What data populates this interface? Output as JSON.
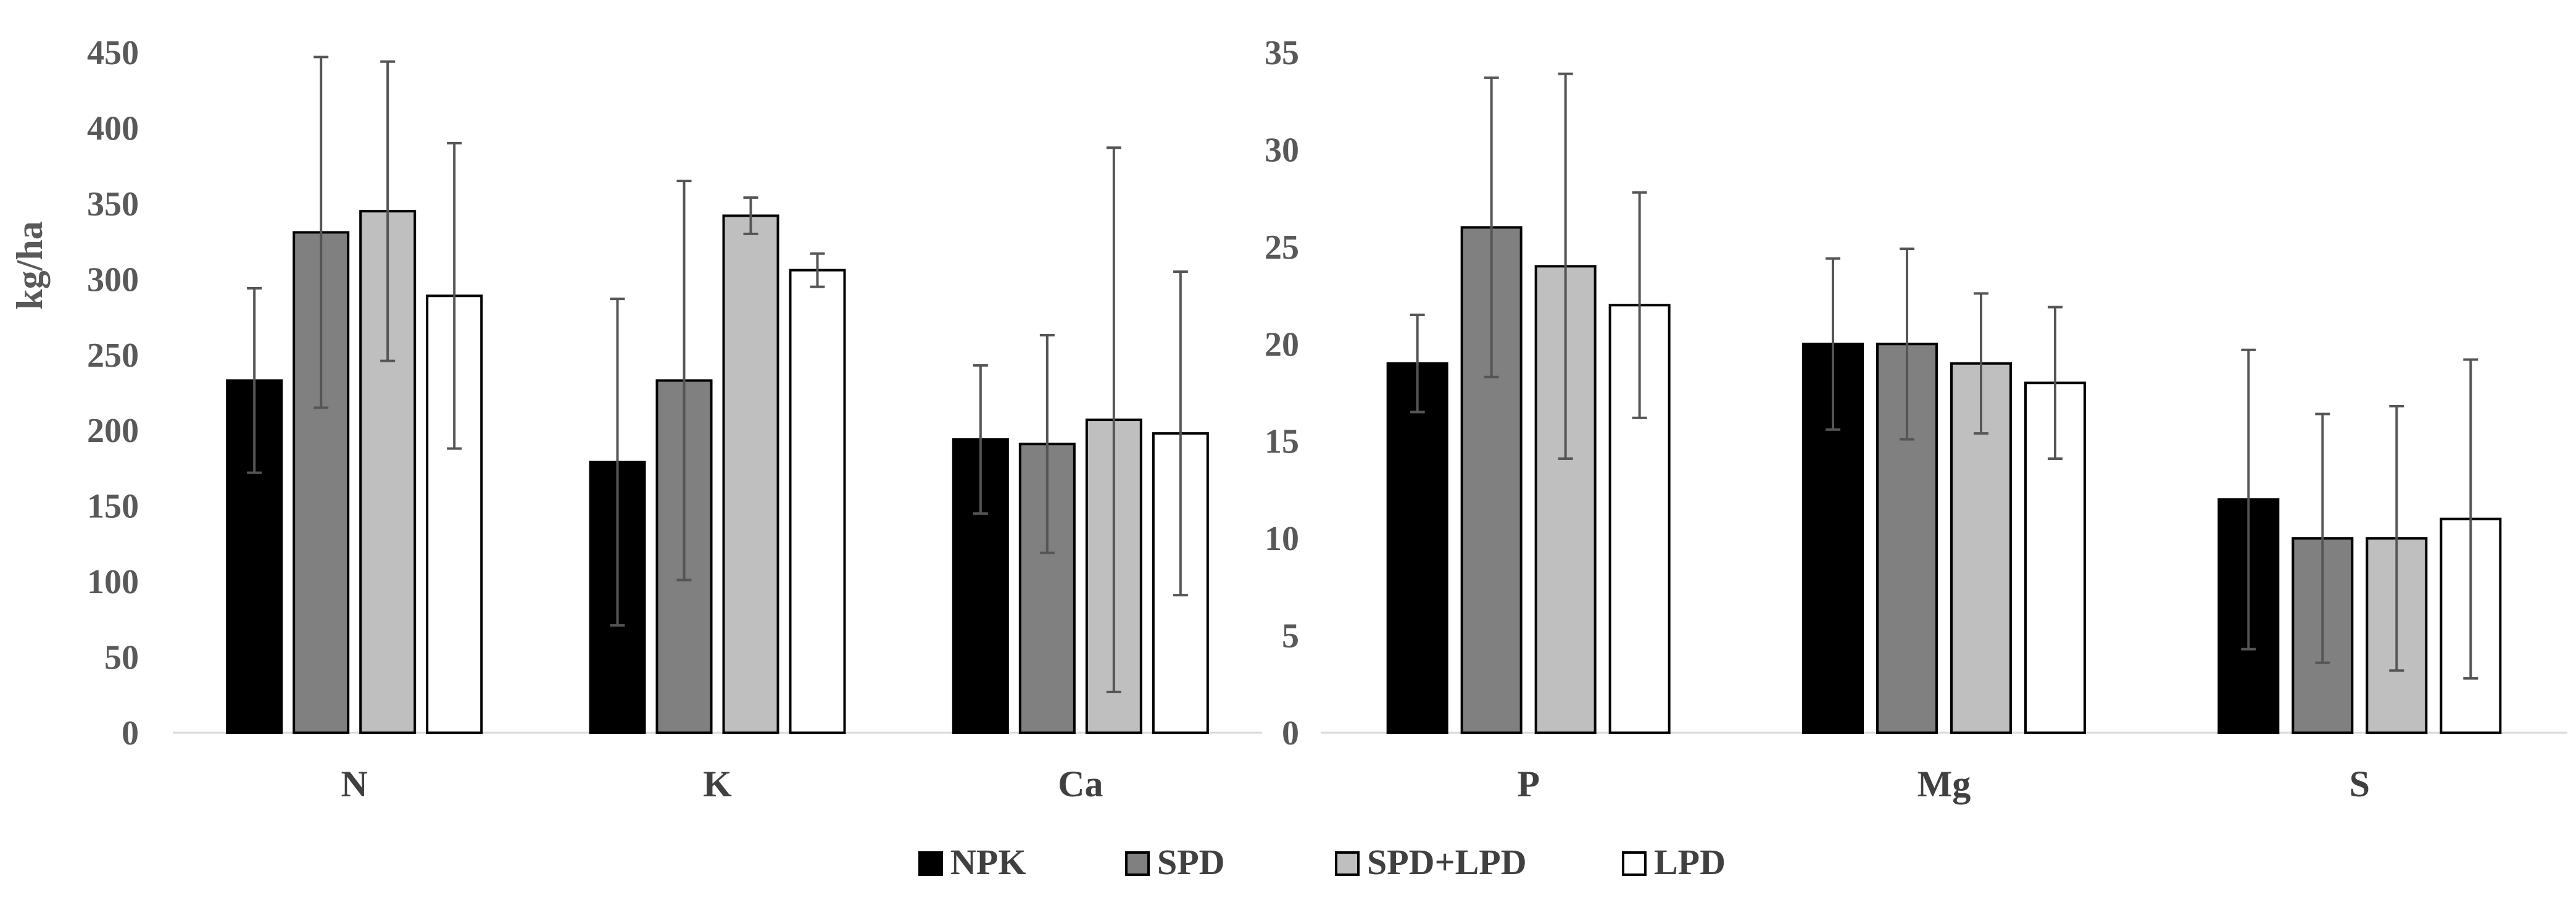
{
  "chart_data": [
    {
      "type": "bar",
      "title": "",
      "xlabel": "",
      "ylabel": "kg/ha",
      "ylim": [
        0,
        450
      ],
      "ytick_step": 50,
      "yticks": [
        "0",
        "50",
        "100",
        "150",
        "200",
        "250",
        "300",
        "350",
        "400",
        "450"
      ],
      "categories": [
        "N",
        "K",
        "Ca"
      ],
      "series": [
        {
          "name": "NPK",
          "values": [
            233,
            179,
            194
          ],
          "errors": [
            61,
            108,
            49
          ]
        },
        {
          "name": "SPD",
          "values": [
            331,
            233,
            191
          ],
          "errors": [
            116,
            132,
            72
          ]
        },
        {
          "name": "SPD+LPD",
          "values": [
            345,
            342,
            207
          ],
          "errors": [
            99,
            12,
            180
          ]
        },
        {
          "name": "LPD",
          "values": [
            289,
            306,
            198
          ],
          "errors": [
            101,
            11,
            107
          ]
        }
      ]
    },
    {
      "type": "bar",
      "title": "",
      "xlabel": "",
      "ylabel": "",
      "ylim": [
        0,
        35
      ],
      "ytick_step": 5,
      "yticks": [
        "0",
        "5",
        "10",
        "15",
        "20",
        "25",
        "30",
        "35"
      ],
      "categories": [
        "P",
        "Mg",
        "S"
      ],
      "series": [
        {
          "name": "NPK",
          "values": [
            19,
            20,
            12
          ],
          "errors": [
            2.5,
            4.4,
            7.7
          ]
        },
        {
          "name": "SPD",
          "values": [
            26,
            20,
            10
          ],
          "errors": [
            7.7,
            4.9,
            6.4
          ]
        },
        {
          "name": "SPD+LPD",
          "values": [
            24,
            19,
            10
          ],
          "errors": [
            9.9,
            3.6,
            6.8
          ]
        },
        {
          "name": "LPD",
          "values": [
            22,
            18,
            11
          ],
          "errors": [
            5.8,
            3.9,
            8.2
          ]
        }
      ]
    }
  ],
  "legend": {
    "position": "bottom-center",
    "items": [
      "NPK",
      "SPD",
      "SPD+LPD",
      "LPD"
    ]
  },
  "colors": {
    "NPK": "#000000",
    "SPD": "#808080",
    "SPD+LPD": "#bfbfbf",
    "LPD": "#ffffff",
    "bar_stroke": "#000000",
    "axis": "#d9d9d9",
    "error_bar": "#555555"
  }
}
